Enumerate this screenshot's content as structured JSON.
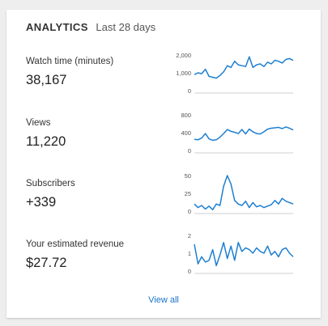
{
  "header": {
    "title": "ANALYTICS",
    "period": "Last 28 days"
  },
  "metrics": [
    {
      "label": "Watch time (minutes)",
      "value": "38,167"
    },
    {
      "label": "Views",
      "value": "11,220"
    },
    {
      "label": "Subscribers",
      "value": "+339"
    },
    {
      "label": "Your estimated revenue",
      "value": "$27.72"
    }
  ],
  "chart_data": [
    {
      "type": "line",
      "series": [
        {
          "values": [
            900,
            1000,
            950,
            1200,
            800,
            750,
            700,
            850,
            1050,
            1400,
            1300,
            1650,
            1450,
            1400,
            1350,
            1900,
            1300,
            1450,
            1500,
            1350,
            1600,
            1500,
            1700,
            1650,
            1550,
            1750,
            1800,
            1700
          ]
        }
      ],
      "yticks": [
        "2,000",
        "1,000",
        "0"
      ],
      "ylim": [
        0,
        2000
      ]
    },
    {
      "type": "line",
      "series": [
        {
          "values": [
            250,
            240,
            280,
            380,
            260,
            230,
            240,
            300,
            380,
            470,
            430,
            410,
            380,
            470,
            370,
            480,
            420,
            380,
            370,
            420,
            480,
            500,
            510,
            520,
            490,
            530,
            500,
            460
          ]
        }
      ],
      "yticks": [
        "800",
        "400",
        "0"
      ],
      "ylim": [
        0,
        800
      ]
    },
    {
      "type": "line",
      "series": [
        {
          "values": [
            10,
            5,
            8,
            3,
            7,
            2,
            10,
            8,
            35,
            50,
            38,
            15,
            10,
            8,
            14,
            5,
            12,
            6,
            8,
            5,
            7,
            9,
            15,
            10,
            18,
            14,
            12,
            10
          ]
        }
      ],
      "yticks": [
        "50",
        "25",
        "0"
      ],
      "ylim": [
        0,
        50
      ]
    },
    {
      "type": "line",
      "series": [
        {
          "values": [
            1.5,
            0.4,
            0.8,
            0.5,
            0.6,
            1.2,
            0.3,
            0.9,
            1.6,
            0.7,
            1.4,
            0.6,
            1.6,
            1.1,
            1.3,
            1.2,
            1.0,
            1.3,
            1.1,
            1.0,
            1.4,
            0.9,
            1.1,
            0.8,
            1.2,
            1.3,
            1.0,
            0.8
          ]
        }
      ],
      "yticks": [
        "2",
        "1",
        "0"
      ],
      "ylim": [
        0,
        2
      ]
    }
  ],
  "footer": {
    "link": "View all"
  }
}
